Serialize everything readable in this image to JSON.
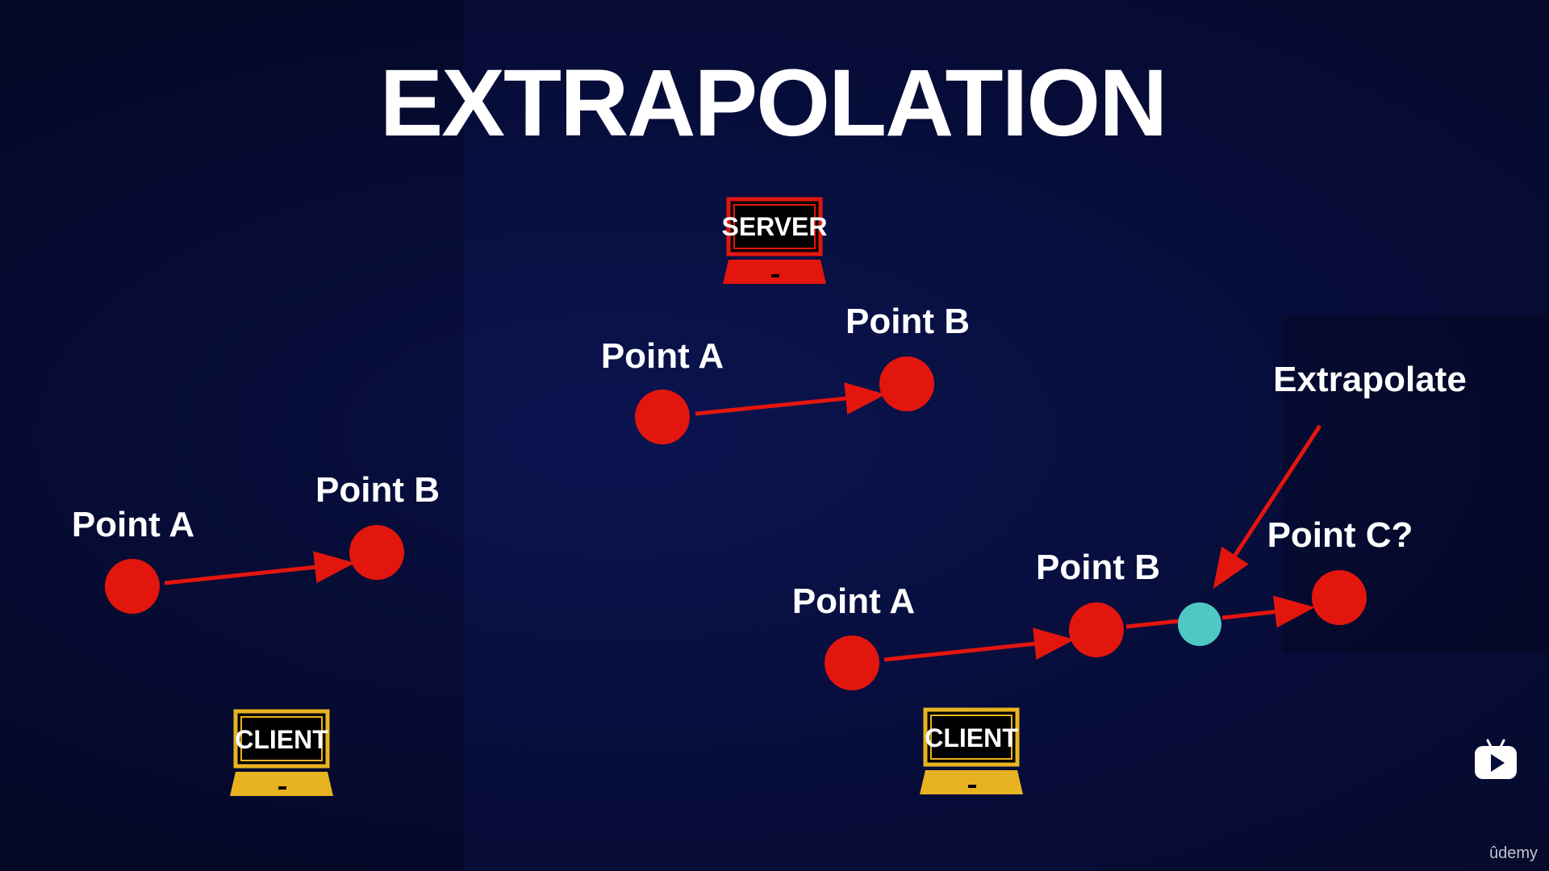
{
  "slide": {
    "title": "EXTRAPOLATION"
  },
  "colors": {
    "background": "#070d3a",
    "point": "#e3160e",
    "arrow": "#e3160e",
    "extrapolated_point": "#4ec8c4",
    "server_device": "#e3160e",
    "client_device": "#e8b320",
    "text": "#ffffff"
  },
  "server": {
    "label": "SERVER",
    "point_a_label": "Point A",
    "point_b_label": "Point B"
  },
  "client_left": {
    "label": "CLIENT",
    "point_a_label": "Point A",
    "point_b_label": "Point B"
  },
  "client_right": {
    "label": "CLIENT",
    "point_a_label": "Point A",
    "point_b_label": "Point B",
    "point_c_label": "Point C?",
    "extrapolate_label": "Extrapolate"
  },
  "icons": {
    "play_badge": "play-icon"
  },
  "branding": {
    "text": "ûdemy"
  }
}
